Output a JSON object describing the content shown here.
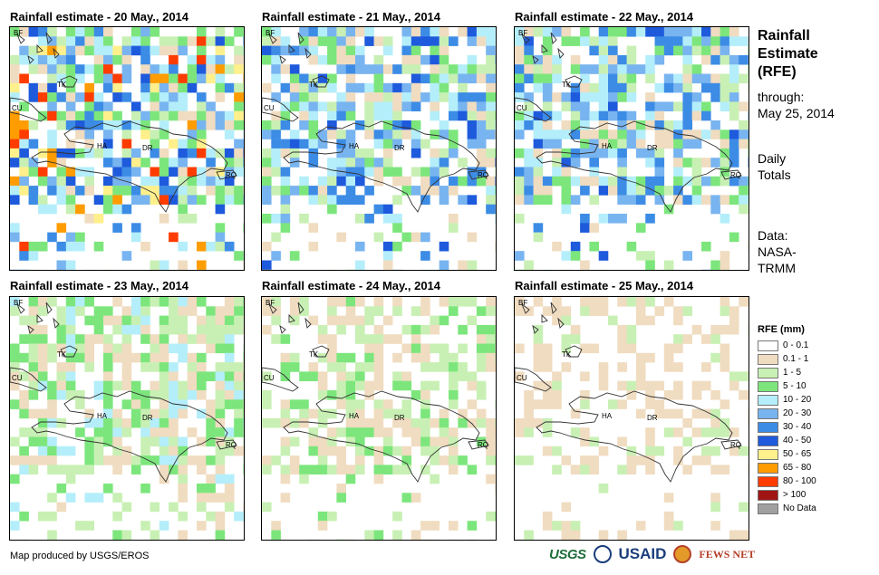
{
  "panels": [
    {
      "title": "Rainfall estimate - 20 May., 2014",
      "intensity": 3,
      "seed": 11,
      "coverage": 0.72
    },
    {
      "title": "Rainfall estimate - 21 May., 2014",
      "intensity": 2.5,
      "seed": 23,
      "coverage": 0.7
    },
    {
      "title": "Rainfall estimate - 22 May., 2014",
      "intensity": 2.4,
      "seed": 37,
      "coverage": 0.7
    },
    {
      "title": "Rainfall estimate - 23 May., 2014",
      "intensity": 1.4,
      "seed": 41,
      "coverage": 0.72
    },
    {
      "title": "Rainfall estimate - 24 May., 2014",
      "intensity": 1.0,
      "seed": 53,
      "coverage": 0.55
    },
    {
      "title": "Rainfall estimate - 25 May., 2014",
      "intensity": 0.5,
      "seed": 67,
      "coverage": 0.35
    }
  ],
  "place_labels": {
    "bf": "BF",
    "cu": "CU",
    "tk": "TK",
    "ha": "HA",
    "dr": "DR",
    "rq": "RQ"
  },
  "side": {
    "title_lines": [
      "Rainfall",
      "Estimate",
      "(RFE)"
    ],
    "through_lines": [
      "through:",
      "May 25, 2014"
    ],
    "totals_lines": [
      "Daily",
      "Totals"
    ],
    "source_lines": [
      "Data:",
      "NASA-",
      "TRMM"
    ]
  },
  "legend": {
    "title": "RFE (mm)",
    "items": [
      {
        "label": "0 - 0.1",
        "color": "#ffffff"
      },
      {
        "label": "0.1 - 1",
        "color": "#f0dcc0"
      },
      {
        "label": "1 - 5",
        "color": "#c8f0b4"
      },
      {
        "label": "5 - 10",
        "color": "#7ce67c"
      },
      {
        "label": "10 - 20",
        "color": "#b4eefa"
      },
      {
        "label": "20 - 30",
        "color": "#78b4f0"
      },
      {
        "label": "30 - 40",
        "color": "#3c8ce6"
      },
      {
        "label": "40 - 50",
        "color": "#1e5adc"
      },
      {
        "label": "50 - 65",
        "color": "#fff08c"
      },
      {
        "label": "65 - 80",
        "color": "#ff9c00"
      },
      {
        "label": "80 - 100",
        "color": "#ff3c00"
      },
      {
        "label": "> 100",
        "color": "#a01414"
      },
      {
        "label": "No Data",
        "color": "#a0a0a0"
      }
    ]
  },
  "credit": "Map produced by USGS/EROS",
  "logos": {
    "usgs": "USGS",
    "usaid": "USAID",
    "fews": "FEWS NET"
  }
}
